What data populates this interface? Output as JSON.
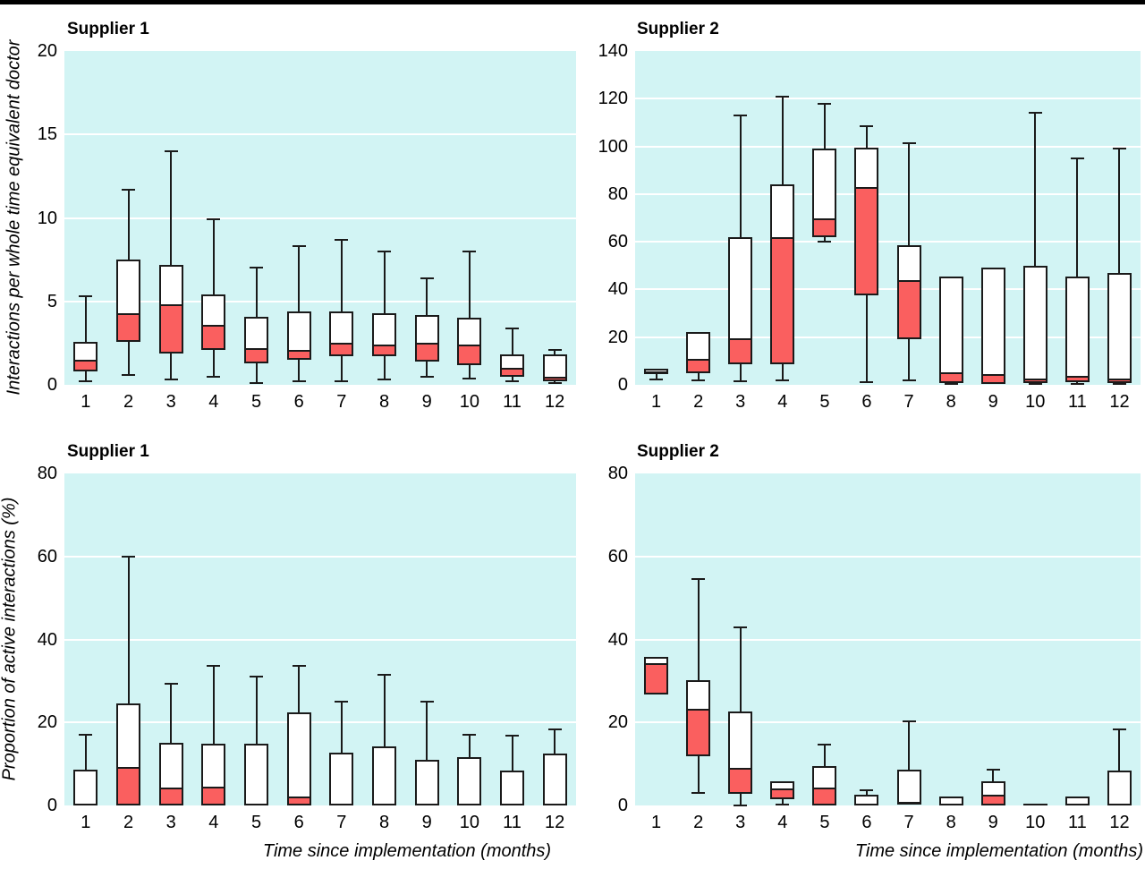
{
  "colors": {
    "panel_bg": "#d2f4f4",
    "box_fill": "#ffffff",
    "box_red": "#fa5f5f",
    "ink": "#1a1a1a",
    "gridline": "#ffffff",
    "top_bar": "#000000"
  },
  "box_format": [
    "whisker_low",
    "q1",
    "median",
    "q3",
    "whisker_high"
  ],
  "chart_data": [
    {
      "id": "top-left",
      "type": "box",
      "title": "Supplier 1",
      "ylabel": "Interactions per whole time equivalent doctor",
      "ylim": [
        0,
        20
      ],
      "yticks": [
        0,
        5,
        10,
        15,
        20
      ],
      "grid": "horizontal-white",
      "categories": [
        "1",
        "2",
        "3",
        "4",
        "5",
        "6",
        "7",
        "8",
        "9",
        "10",
        "11",
        "12"
      ],
      "boxes": [
        [
          0.2,
          0.8,
          1.5,
          2.6,
          5.3
        ],
        [
          0.6,
          2.6,
          4.3,
          7.5,
          11.7
        ],
        [
          0.3,
          1.9,
          4.8,
          7.2,
          14.0
        ],
        [
          0.5,
          2.1,
          3.6,
          5.4,
          9.9
        ],
        [
          0.1,
          1.3,
          2.2,
          4.1,
          7.0
        ],
        [
          0.2,
          1.5,
          2.1,
          4.4,
          8.3
        ],
        [
          0.2,
          1.7,
          2.5,
          4.4,
          8.7
        ],
        [
          0.3,
          1.7,
          2.4,
          4.3,
          8.0
        ],
        [
          0.5,
          1.4,
          2.5,
          4.2,
          6.4
        ],
        [
          0.4,
          1.2,
          2.4,
          4.0,
          8.0
        ],
        [
          0.2,
          0.5,
          1.0,
          1.8,
          3.4
        ],
        [
          0.1,
          0.2,
          0.5,
          1.8,
          2.1
        ]
      ]
    },
    {
      "id": "top-right",
      "type": "box",
      "title": "Supplier 2",
      "ylim": [
        0,
        140
      ],
      "yticks": [
        0,
        20,
        40,
        60,
        80,
        100,
        120,
        140
      ],
      "grid": "horizontal-white",
      "categories": [
        "1",
        "2",
        "3",
        "4",
        "5",
        "6",
        "7",
        "8",
        "9",
        "10",
        "11",
        "12"
      ],
      "boxes": [
        [
          2.2,
          4.4,
          5.8,
          6.6,
          6.6
        ],
        [
          1.7,
          4.9,
          11.0,
          22.0,
          22.0
        ],
        [
          1.5,
          8.8,
          19.5,
          62.0,
          113.0
        ],
        [
          2.0,
          8.5,
          62.0,
          84.0,
          121.0
        ],
        [
          60.0,
          62.0,
          70.0,
          99.0,
          118.0
        ],
        [
          1.0,
          37.5,
          83.0,
          99.5,
          108.5
        ],
        [
          2.0,
          19.0,
          44.0,
          58.5,
          101.5
        ],
        [
          0.3,
          0.8,
          5.3,
          45.5,
          45.5
        ],
        [
          0.5,
          0.5,
          4.5,
          49.0,
          49.0
        ],
        [
          0.4,
          0.8,
          2.8,
          50.0,
          114.0
        ],
        [
          0.5,
          1.0,
          3.8,
          45.5,
          95.0
        ],
        [
          0.2,
          0.8,
          2.8,
          47.0,
          99.0
        ]
      ]
    },
    {
      "id": "bottom-left",
      "type": "box",
      "title": "Supplier 1",
      "ylabel": "Proportion of active interactions (%)",
      "xlabel": "Time since implementation (months)",
      "ylim": [
        0,
        80
      ],
      "yticks": [
        0,
        20,
        40,
        60,
        80
      ],
      "grid": "horizontal-white",
      "categories": [
        "1",
        "2",
        "3",
        "4",
        "5",
        "6",
        "7",
        "8",
        "9",
        "10",
        "11",
        "12"
      ],
      "boxes": [
        [
          0,
          0,
          0,
          8.6,
          17.0
        ],
        [
          0,
          0,
          9.3,
          24.6,
          60.0
        ],
        [
          0,
          0,
          4.3,
          15.1,
          29.3
        ],
        [
          0,
          0,
          4.5,
          14.8,
          33.6
        ],
        [
          0,
          0,
          0,
          14.8,
          31.0
        ],
        [
          0,
          0,
          2.2,
          22.4,
          33.6
        ],
        [
          0,
          0,
          0,
          12.8,
          25.0
        ],
        [
          0,
          0,
          0,
          14.3,
          31.4
        ],
        [
          0,
          0,
          0,
          10.9,
          25.0
        ],
        [
          0,
          0,
          0,
          11.6,
          17.1
        ],
        [
          0,
          0,
          0,
          8.5,
          16.9
        ],
        [
          0,
          0,
          0,
          12.4,
          18.4
        ]
      ]
    },
    {
      "id": "bottom-right",
      "type": "box",
      "title": "Supplier 2",
      "xlabel": "Time since implementation (months)",
      "ylim": [
        0,
        80
      ],
      "yticks": [
        0,
        20,
        40,
        60,
        80
      ],
      "grid": "horizontal-white",
      "categories": [
        "1",
        "2",
        "3",
        "4",
        "5",
        "6",
        "7",
        "8",
        "9",
        "10",
        "11",
        "12"
      ],
      "boxes": [
        [
          26.8,
          26.8,
          34.2,
          35.9,
          35.9
        ],
        [
          3.1,
          11.9,
          23.2,
          30.2,
          54.5
        ],
        [
          0,
          2.8,
          9.1,
          22.6,
          43.0
        ],
        [
          0.2,
          1.5,
          4.2,
          5.8,
          5.8
        ],
        [
          0,
          0,
          4.4,
          9.4,
          14.7
        ],
        [
          0,
          0,
          0,
          2.5,
          3.6
        ],
        [
          0.2,
          0.2,
          0.9,
          8.7,
          20.2
        ],
        [
          0,
          0,
          0,
          2.1,
          2.1
        ],
        [
          0,
          0,
          2.6,
          5.9,
          8.7
        ],
        [
          0,
          0,
          0,
          0,
          0
        ],
        [
          0,
          0,
          0,
          2.1,
          2.1
        ],
        [
          0,
          0,
          0,
          8.4,
          18.3
        ]
      ]
    }
  ]
}
